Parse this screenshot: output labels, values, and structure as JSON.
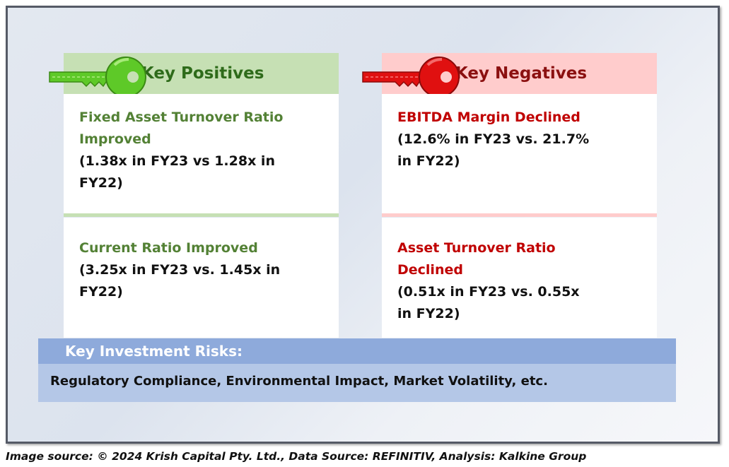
{
  "positives": {
    "heading": "Key Positives",
    "items": [
      {
        "title_line1": "Fixed Asset Turnover Ratio",
        "title_line2": "Improved",
        "detail_line1": "(1.38x in FY23 vs 1.28x in",
        "detail_line2": "FY22)"
      },
      {
        "title_line1": "Current Ratio Improved",
        "detail_line1": "(3.25x in FY23 vs. 1.45x in",
        "detail_line2": "FY22)"
      }
    ]
  },
  "negatives": {
    "heading": "Key Negatives",
    "items": [
      {
        "title_line1": "EBITDA Margin Declined",
        "detail_line1": "(12.6% in FY23 vs. 21.7%",
        "detail_line2": "in FY22)"
      },
      {
        "title_line1": "Asset Turnover Ratio",
        "title_line2": "Declined",
        "detail_line1": "(0.51x in FY23 vs. 0.55x",
        "detail_line2": "in FY22)"
      }
    ]
  },
  "risks": {
    "heading": "Key Investment Risks:",
    "body": "Regulatory Compliance, Environmental Impact, Market Volatility, etc."
  },
  "caption": "Image source: © 2024 Krish Capital Pty. Ltd., Data Source: REFINITIV, Analysis: Kalkine Group",
  "colors": {
    "positive_accent": "#538135",
    "positive_header": "#c6e0b4",
    "negative_accent": "#c00000",
    "negative_header": "#ffcccc",
    "risk_header": "#8eaadb",
    "risk_body": "#b4c7e7",
    "key_green": "#5ec928",
    "key_red": "#e01010"
  },
  "icons": {
    "positive": "green-key-icon",
    "negative": "red-key-icon"
  }
}
